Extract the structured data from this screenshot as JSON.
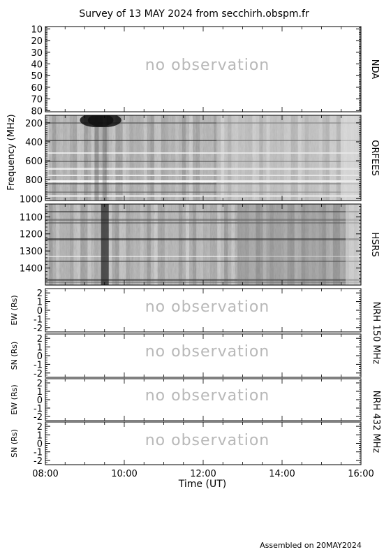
{
  "title": "Survey of 13 MAY 2024 from secchirh.obspm.fr",
  "footer": "Assembled on 20MAY2024",
  "no_observation_text": "no observation",
  "chart_data": {
    "type": "heatmap",
    "x_axis": {
      "label": "Time (UT)",
      "ticks": [
        "08:00",
        "10:00",
        "12:00",
        "14:00",
        "16:00"
      ],
      "range_hours": [
        8,
        16
      ]
    },
    "shared_ylabel": "Frequency (MHz)",
    "panels": [
      {
        "id": "nda",
        "name": "NDA",
        "observation": false,
        "ylim": [
          8,
          81
        ],
        "yticks": [
          10,
          20,
          30,
          40,
          50,
          60,
          70,
          80
        ]
      },
      {
        "id": "orfees",
        "name": "ORFEES",
        "observation": true,
        "ylim": [
          120,
          1020
        ],
        "yticks": [
          200,
          400,
          600,
          800,
          1000
        ],
        "dark_burst_times_hours": [
          9.3,
          9.5
        ]
      },
      {
        "id": "hsrs",
        "name": "HSRS",
        "observation": true,
        "ylim": [
          1025,
          1500
        ],
        "yticks": [
          1100,
          1200,
          1300,
          1400
        ],
        "dark_burst_times_hours": [
          9.5
        ]
      },
      {
        "id": "nrh150ew",
        "ylabel": "EW (Rs)",
        "observation": false,
        "ylim": [
          -2.5,
          2.5
        ],
        "yticks": [
          2,
          1,
          0,
          -1,
          -2
        ]
      },
      {
        "id": "nrh150sn",
        "ylabel": "SN (Rs)",
        "observation": false,
        "ylim": [
          -2.5,
          2.5
        ],
        "yticks": [
          2,
          1,
          0,
          -1,
          -2
        ]
      },
      {
        "id": "nrh432ew",
        "ylabel": "EW (Rs)",
        "observation": false,
        "ylim": [
          -2.5,
          2.5
        ],
        "yticks": [
          2,
          1,
          0,
          -1,
          -2
        ]
      },
      {
        "id": "nrh432sn",
        "ylabel": "SN (Rs)",
        "observation": false,
        "ylim": [
          -2.5,
          2.5
        ],
        "yticks": [
          2,
          1,
          0,
          -1,
          -2
        ]
      }
    ],
    "group_labels": [
      "NRH 150 MHz",
      "NRH 432 MHz"
    ]
  }
}
